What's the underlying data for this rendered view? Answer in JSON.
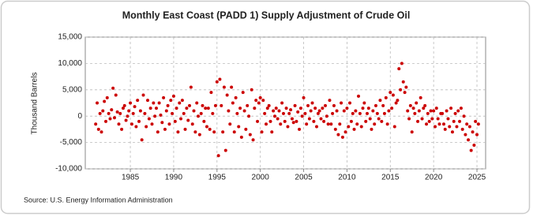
{
  "chart_data": {
    "type": "scatter",
    "title": "Monthly East Coast (PADD 1) Supply Adjustment of Crude Oil",
    "y_label": "Thousand Barrels",
    "source": "Source: U.S. Energy Information Administration",
    "color": "#cc0000",
    "grid": true,
    "xlim": [
      1979.8,
      2026
    ],
    "xticks": [
      1985,
      1990,
      1995,
      2000,
      2005,
      2010,
      2015,
      2020,
      2025
    ],
    "ylim": [
      -10000,
      15000
    ],
    "yticks": [
      {
        "value": -10000,
        "label": "-10,000"
      },
      {
        "value": -5000,
        "label": "-5,000"
      },
      0,
      {
        "value": 5000,
        "label": "5,000"
      },
      {
        "value": 10000,
        "label": "10,000"
      },
      {
        "value": 15000,
        "label": "15,000"
      }
    ],
    "x": [
      1981,
      1981.17,
      1981.33,
      1981.5,
      1981.67,
      1981.83,
      1982,
      1982.17,
      1982.33,
      1982.5,
      1982.67,
      1982.83,
      1983,
      1983.17,
      1983.33,
      1983.5,
      1983.67,
      1983.83,
      1984,
      1984.17,
      1984.33,
      1984.5,
      1984.67,
      1984.83,
      1985,
      1985.17,
      1985.33,
      1985.5,
      1985.67,
      1985.83,
      1986,
      1986.17,
      1986.33,
      1986.5,
      1986.67,
      1986.83,
      1987,
      1987.17,
      1987.33,
      1987.5,
      1987.67,
      1987.83,
      1988,
      1988.17,
      1988.33,
      1988.5,
      1988.67,
      1988.83,
      1989,
      1989.17,
      1989.33,
      1989.5,
      1989.67,
      1989.83,
      1990,
      1990.17,
      1990.33,
      1990.5,
      1990.67,
      1990.83,
      1991,
      1991.17,
      1991.33,
      1991.5,
      1991.67,
      1991.83,
      1992,
      1992.17,
      1992.33,
      1992.5,
      1992.67,
      1992.83,
      1993,
      1993.17,
      1993.33,
      1993.5,
      1993.67,
      1993.83,
      1994,
      1994.17,
      1994.33,
      1994.5,
      1994.67,
      1994.83,
      1995,
      1995.17,
      1995.33,
      1995.5,
      1995.67,
      1995.83,
      1996,
      1996.17,
      1996.33,
      1996.5,
      1996.67,
      1996.83,
      1997,
      1997.17,
      1997.33,
      1997.5,
      1997.67,
      1997.83,
      1998,
      1998.17,
      1998.33,
      1998.5,
      1998.67,
      1998.83,
      1999,
      1999.17,
      1999.33,
      1999.5,
      1999.67,
      1999.83,
      2000,
      2000.17,
      2000.33,
      2000.5,
      2000.67,
      2000.83,
      2001,
      2001.17,
      2001.33,
      2001.5,
      2001.67,
      2001.83,
      2002,
      2002.17,
      2002.33,
      2002.5,
      2002.67,
      2002.83,
      2003,
      2003.17,
      2003.33,
      2003.5,
      2003.67,
      2003.83,
      2004,
      2004.17,
      2004.33,
      2004.5,
      2004.67,
      2004.83,
      2005,
      2005.17,
      2005.33,
      2005.5,
      2005.67,
      2005.83,
      2006,
      2006.17,
      2006.33,
      2006.5,
      2006.67,
      2006.83,
      2007,
      2007.17,
      2007.33,
      2007.5,
      2007.67,
      2007.83,
      2008,
      2008.17,
      2008.33,
      2008.5,
      2008.67,
      2008.83,
      2009,
      2009.17,
      2009.33,
      2009.5,
      2009.67,
      2009.83,
      2010,
      2010.17,
      2010.33,
      2010.5,
      2010.67,
      2010.83,
      2011,
      2011.17,
      2011.33,
      2011.5,
      2011.67,
      2011.83,
      2012,
      2012.17,
      2012.33,
      2012.5,
      2012.67,
      2012.83,
      2013,
      2013.17,
      2013.33,
      2013.5,
      2013.67,
      2013.83,
      2014,
      2014.17,
      2014.33,
      2014.5,
      2014.67,
      2014.83,
      2015,
      2015.17,
      2015.33,
      2015.5,
      2015.67,
      2015.83,
      2016,
      2016.17,
      2016.33,
      2016.5,
      2016.67,
      2016.83,
      2017,
      2017.17,
      2017.33,
      2017.5,
      2017.67,
      2017.83,
      2018,
      2018.17,
      2018.33,
      2018.5,
      2018.67,
      2018.83,
      2019,
      2019.17,
      2019.33,
      2019.5,
      2019.67,
      2019.83,
      2020,
      2020.17,
      2020.33,
      2020.5,
      2020.67,
      2020.83,
      2021,
      2021.17,
      2021.33,
      2021.5,
      2021.67,
      2021.83,
      2022,
      2022.17,
      2022.33,
      2022.5,
      2022.67,
      2022.83,
      2023,
      2023.17,
      2023.33,
      2023.5,
      2023.67,
      2023.83,
      2024,
      2024.17,
      2024.33,
      2024.5,
      2024.67,
      2024.83,
      2025,
      2025.17
    ],
    "values": [
      -1500,
      2500,
      -2500,
      500,
      -3000,
      1000,
      2800,
      -1000,
      3500,
      500,
      -500,
      1200,
      5300,
      -300,
      4000,
      800,
      -1500,
      500,
      -2500,
      1500,
      2000,
      -800,
      0,
      1000,
      2500,
      -1500,
      500,
      1800,
      -2000,
      3000,
      -1000,
      1000,
      -4500,
      4000,
      500,
      -2000,
      3000,
      -500,
      1500,
      -1500,
      2500,
      0,
      1500,
      -3000,
      2500,
      200,
      -1200,
      3500,
      -2500,
      1000,
      2000,
      -1500,
      3000,
      500,
      3800,
      -1000,
      1500,
      -3000,
      2500,
      -500,
      3000,
      500,
      -2500,
      1500,
      -800,
      2000,
      5500,
      -1500,
      1000,
      -3000,
      2500,
      0,
      -3500,
      500,
      2000,
      -1000,
      1500,
      -2000,
      1500,
      -2500,
      4500,
      500,
      -3000,
      2000,
      6500,
      -7500,
      7000,
      2000,
      -3000,
      5500,
      -6500,
      4000,
      1000,
      -1500,
      5500,
      2500,
      -3000,
      3500,
      500,
      -2000,
      1500,
      -4000,
      4500,
      1000,
      -2500,
      2000,
      0,
      -3500,
      5000,
      -4500,
      1500,
      3000,
      -1000,
      2500,
      3500,
      -3000,
      3000,
      500,
      -1500,
      1500,
      2000,
      -1000,
      -3000,
      1000,
      0,
      1500,
      -500,
      1000,
      -1500,
      2500,
      500,
      -1000,
      1500,
      -2000,
      500,
      1200,
      -500,
      -1200,
      2000,
      -1000,
      800,
      -2500,
      1500,
      0,
      3500,
      500,
      -1500,
      2000,
      -500,
      1000,
      2500,
      -1000,
      1500,
      -2000,
      500,
      1000,
      -500,
      1500,
      -1000,
      2000,
      0,
      -1500,
      3000,
      -1500,
      500,
      2000,
      -2500,
      1000,
      -3500,
      -1500,
      2500,
      -4000,
      1000,
      -3000,
      1500,
      -2000,
      2500,
      -1000,
      500,
      -2500,
      1000,
      -1500,
      3800,
      500,
      -2000,
      1500,
      2500,
      -1000,
      500,
      1500,
      -500,
      -2500,
      1000,
      -1500,
      2000,
      500,
      -500,
      3000,
      -1000,
      2000,
      500,
      3500,
      -1500,
      1000,
      4500,
      1500,
      4000,
      -2000,
      2500,
      3000,
      9000,
      5000,
      10000,
      6500,
      4500,
      5500,
      1000,
      -500,
      2000,
      -3000,
      1500,
      500,
      2500,
      -1000,
      1000,
      3500,
      -500,
      1500,
      2000,
      -1500,
      500,
      -1000,
      1000,
      -500,
      1000,
      -2000,
      1500,
      -500,
      -1500,
      500,
      500,
      -1500,
      -2500,
      1000,
      -500,
      -2000,
      1500,
      -3000,
      -1000,
      500,
      -2000,
      1000,
      -1000,
      1500,
      -2500,
      0,
      -3500,
      -1500,
      -4500,
      -2000,
      -6500,
      -3000,
      -5500,
      -1000,
      -3500,
      -1500
    ]
  }
}
